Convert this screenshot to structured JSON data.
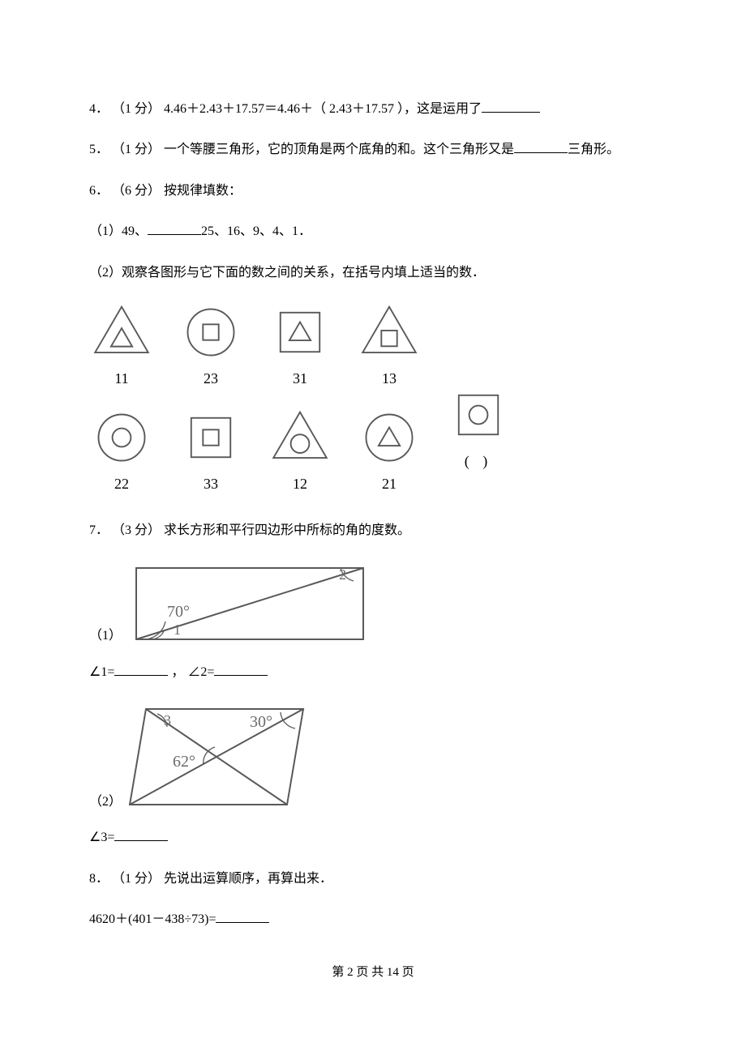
{
  "q4": {
    "label": "4．",
    "points": "（1 分）",
    "expr": "4.46＋2.43＋17.57＝4.46＋（ 2.43＋17.57 ），这是运用了"
  },
  "q5": {
    "label": "5．",
    "points": "（1 分）",
    "before": "一个等腰三角形，它的顶角是两个底角的和。这个三角形又是",
    "after": "三角形。"
  },
  "q6": {
    "label": "6．",
    "points": "（6 分）",
    "title": "按规律填数：",
    "p1_before": "（1）49、",
    "p1_after": "25、16、9、4、1．",
    "p2": "（2）观察各图形与它下面的数之间的关系，在括号内填上适当的数．",
    "row1": [
      {
        "outer": "triangle",
        "inner": "triangle",
        "num": "11"
      },
      {
        "outer": "circle",
        "inner": "square",
        "num": "23"
      },
      {
        "outer": "square",
        "inner": "triangle",
        "num": "31"
      },
      {
        "outer": "triangle",
        "inner": "square",
        "num": "13"
      }
    ],
    "row2": [
      {
        "outer": "circle",
        "inner": "circle",
        "num": "22"
      },
      {
        "outer": "square",
        "inner": "square",
        "num": "33"
      },
      {
        "outer": "triangle",
        "inner": "circle",
        "num": "12"
      },
      {
        "outer": "circle",
        "inner": "triangle",
        "num": "21"
      },
      {
        "outer": "square",
        "inner": "circle",
        "num": "(   )"
      }
    ]
  },
  "q7": {
    "label": "7．",
    "points": "（3 分）",
    "title": "求长方形和平行四边形中所标的角的度数。",
    "p1_label": "（1）",
    "ans1_a": "∠1=",
    "ans1_sep": "，",
    "ans1_b": "∠2=",
    "p2_label": "（2）",
    "ans2": "∠3=",
    "rect": {
      "angle70": "70°",
      "a1": "1",
      "a2": "2"
    },
    "para": {
      "a3": "3",
      "angle30": "30°",
      "angle62": "62°"
    }
  },
  "q8": {
    "label": "8．",
    "points": "（1 分）",
    "title": "先说出运算顺序，再算出来．",
    "expr": "4620＋(401－438÷73)="
  },
  "footer": "第 2 页 共 14 页",
  "style": {
    "stroke": "#595959",
    "text": "#6a6a6a",
    "strokeWidth": 2
  }
}
